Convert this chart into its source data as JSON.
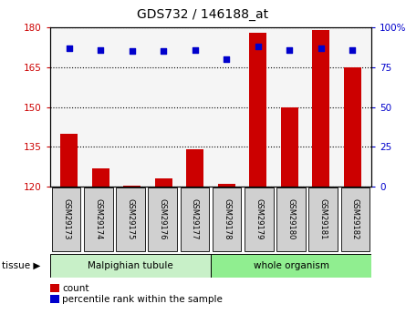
{
  "title": "GDS732 / 146188_at",
  "samples": [
    "GSM29173",
    "GSM29174",
    "GSM29175",
    "GSM29176",
    "GSM29177",
    "GSM29178",
    "GSM29179",
    "GSM29180",
    "GSM29181",
    "GSM29182"
  ],
  "counts": [
    140,
    127,
    120.5,
    123,
    134,
    121,
    178,
    150,
    179,
    165
  ],
  "percentile": [
    87,
    86,
    85,
    85,
    86,
    80,
    88,
    86,
    87,
    86
  ],
  "malpighian_count": 5,
  "whole_count": 5,
  "tissue_labels": [
    "Malpighian tubule",
    "whole organism"
  ],
  "tissue_color_malp": "#c8f0c8",
  "tissue_color_whole": "#90ee90",
  "ylim_left": [
    120,
    180
  ],
  "yticks_left": [
    120,
    135,
    150,
    165,
    180
  ],
  "ylim_right": [
    0,
    100
  ],
  "yticks_right": [
    0,
    25,
    50,
    75,
    100
  ],
  "bar_color": "#cc0000",
  "dot_color": "#0000cc",
  "bar_width": 0.55,
  "plot_bg": "#f5f5f5",
  "left_axis_color": "#cc0000",
  "right_axis_color": "#0000cc",
  "sample_box_color": "#d0d0d0",
  "fig_width": 4.45,
  "fig_height": 3.45,
  "dpi": 100
}
